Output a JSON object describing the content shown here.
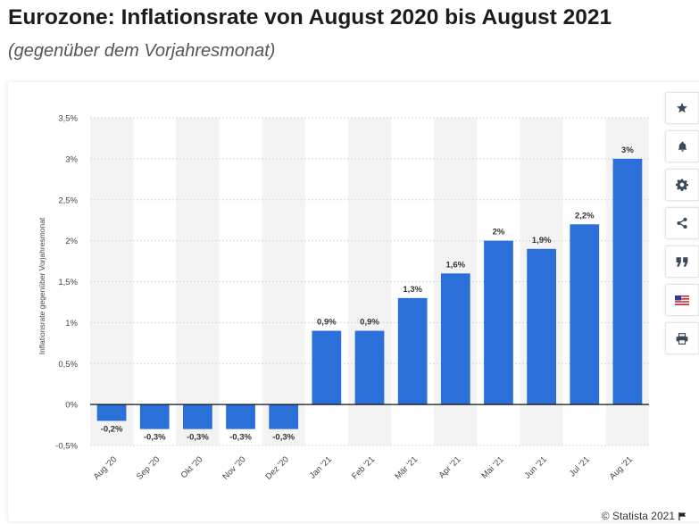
{
  "header": {
    "title": "Eurozone: Inflationsrate von August 2020 bis August 2021",
    "subtitle": "(gegenüber dem Vorjahresmonat)"
  },
  "toolbar": {
    "items": [
      "star-icon",
      "bell-icon",
      "gear-icon",
      "share-icon",
      "quote-icon",
      "flag-icon",
      "print-icon"
    ]
  },
  "footer": {
    "credit": "© Statista 2021"
  },
  "colors": {
    "bar": "#2a70d8",
    "band": "#f3f3f3",
    "grid": "#cfcfcf",
    "zero_line": "#111111",
    "icon": "#3a4a5c"
  },
  "chart_data": {
    "type": "bar",
    "title": "Eurozone: Inflationsrate von August 2020 bis August 2021",
    "subtitle": "(gegenüber dem Vorjahresmonat)",
    "xlabel": "",
    "ylabel": "Inflationsrate gegenüber Vorjahresmonat",
    "categories": [
      "Aug '20",
      "Sep '20",
      "Okt '20",
      "Nov '20",
      "Dez '20",
      "Jan '21",
      "Feb '21",
      "Mär '21",
      "Apr '21",
      "Mai '21",
      "Jun '21",
      "Jul '21",
      "Aug '21"
    ],
    "values": [
      -0.2,
      -0.3,
      -0.3,
      -0.3,
      -0.3,
      0.9,
      0.9,
      1.3,
      1.6,
      2.0,
      1.9,
      2.2,
      3.0
    ],
    "value_labels": [
      "-0,2%",
      "-0,3%",
      "-0,3%",
      "-0,3%",
      "-0,3%",
      "0,9%",
      "0,9%",
      "1,3%",
      "1,6%",
      "2%",
      "1,9%",
      "2,2%",
      "3%"
    ],
    "ylim": [
      -0.5,
      3.5
    ],
    "yticks": [
      -0.5,
      0,
      0.5,
      1,
      1.5,
      2,
      2.5,
      3,
      3.5
    ],
    "ytick_labels": [
      "-0,5%",
      "0%",
      "0,5%",
      "1%",
      "1,5%",
      "2%",
      "2,5%",
      "3%",
      "3,5%"
    ],
    "grid": true,
    "legend": "none"
  }
}
